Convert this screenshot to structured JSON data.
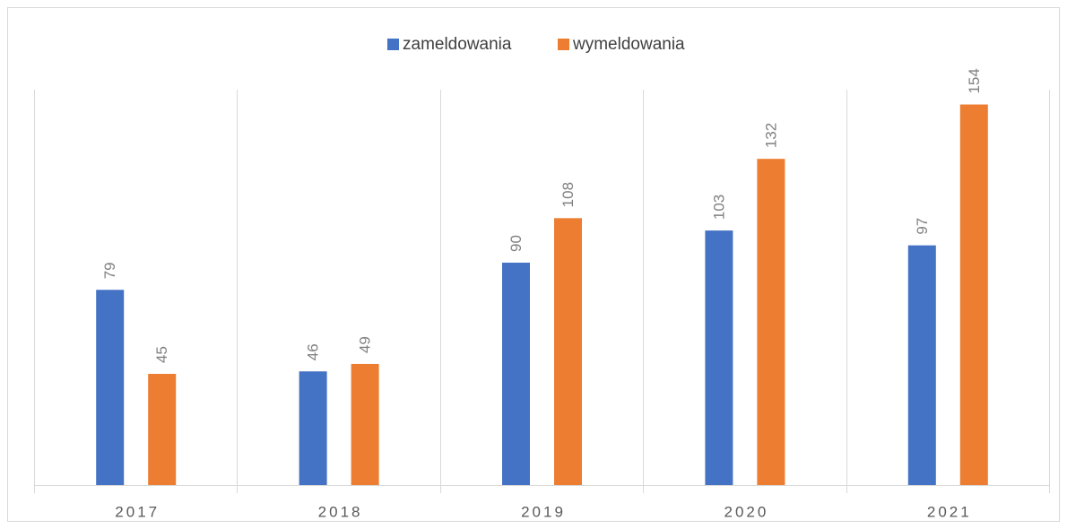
{
  "chart_data": {
    "type": "bar",
    "categories": [
      "2017",
      "2018",
      "2019",
      "2020",
      "2021"
    ],
    "series": [
      {
        "name": "zameldowania",
        "color": "#4472c4",
        "values": [
          79,
          46,
          90,
          103,
          97
        ]
      },
      {
        "name": "wymeldowania",
        "color": "#ed7d31",
        "values": [
          45,
          49,
          108,
          132,
          154
        ]
      }
    ],
    "ylim": [
      0,
      160
    ],
    "legend": "top"
  }
}
